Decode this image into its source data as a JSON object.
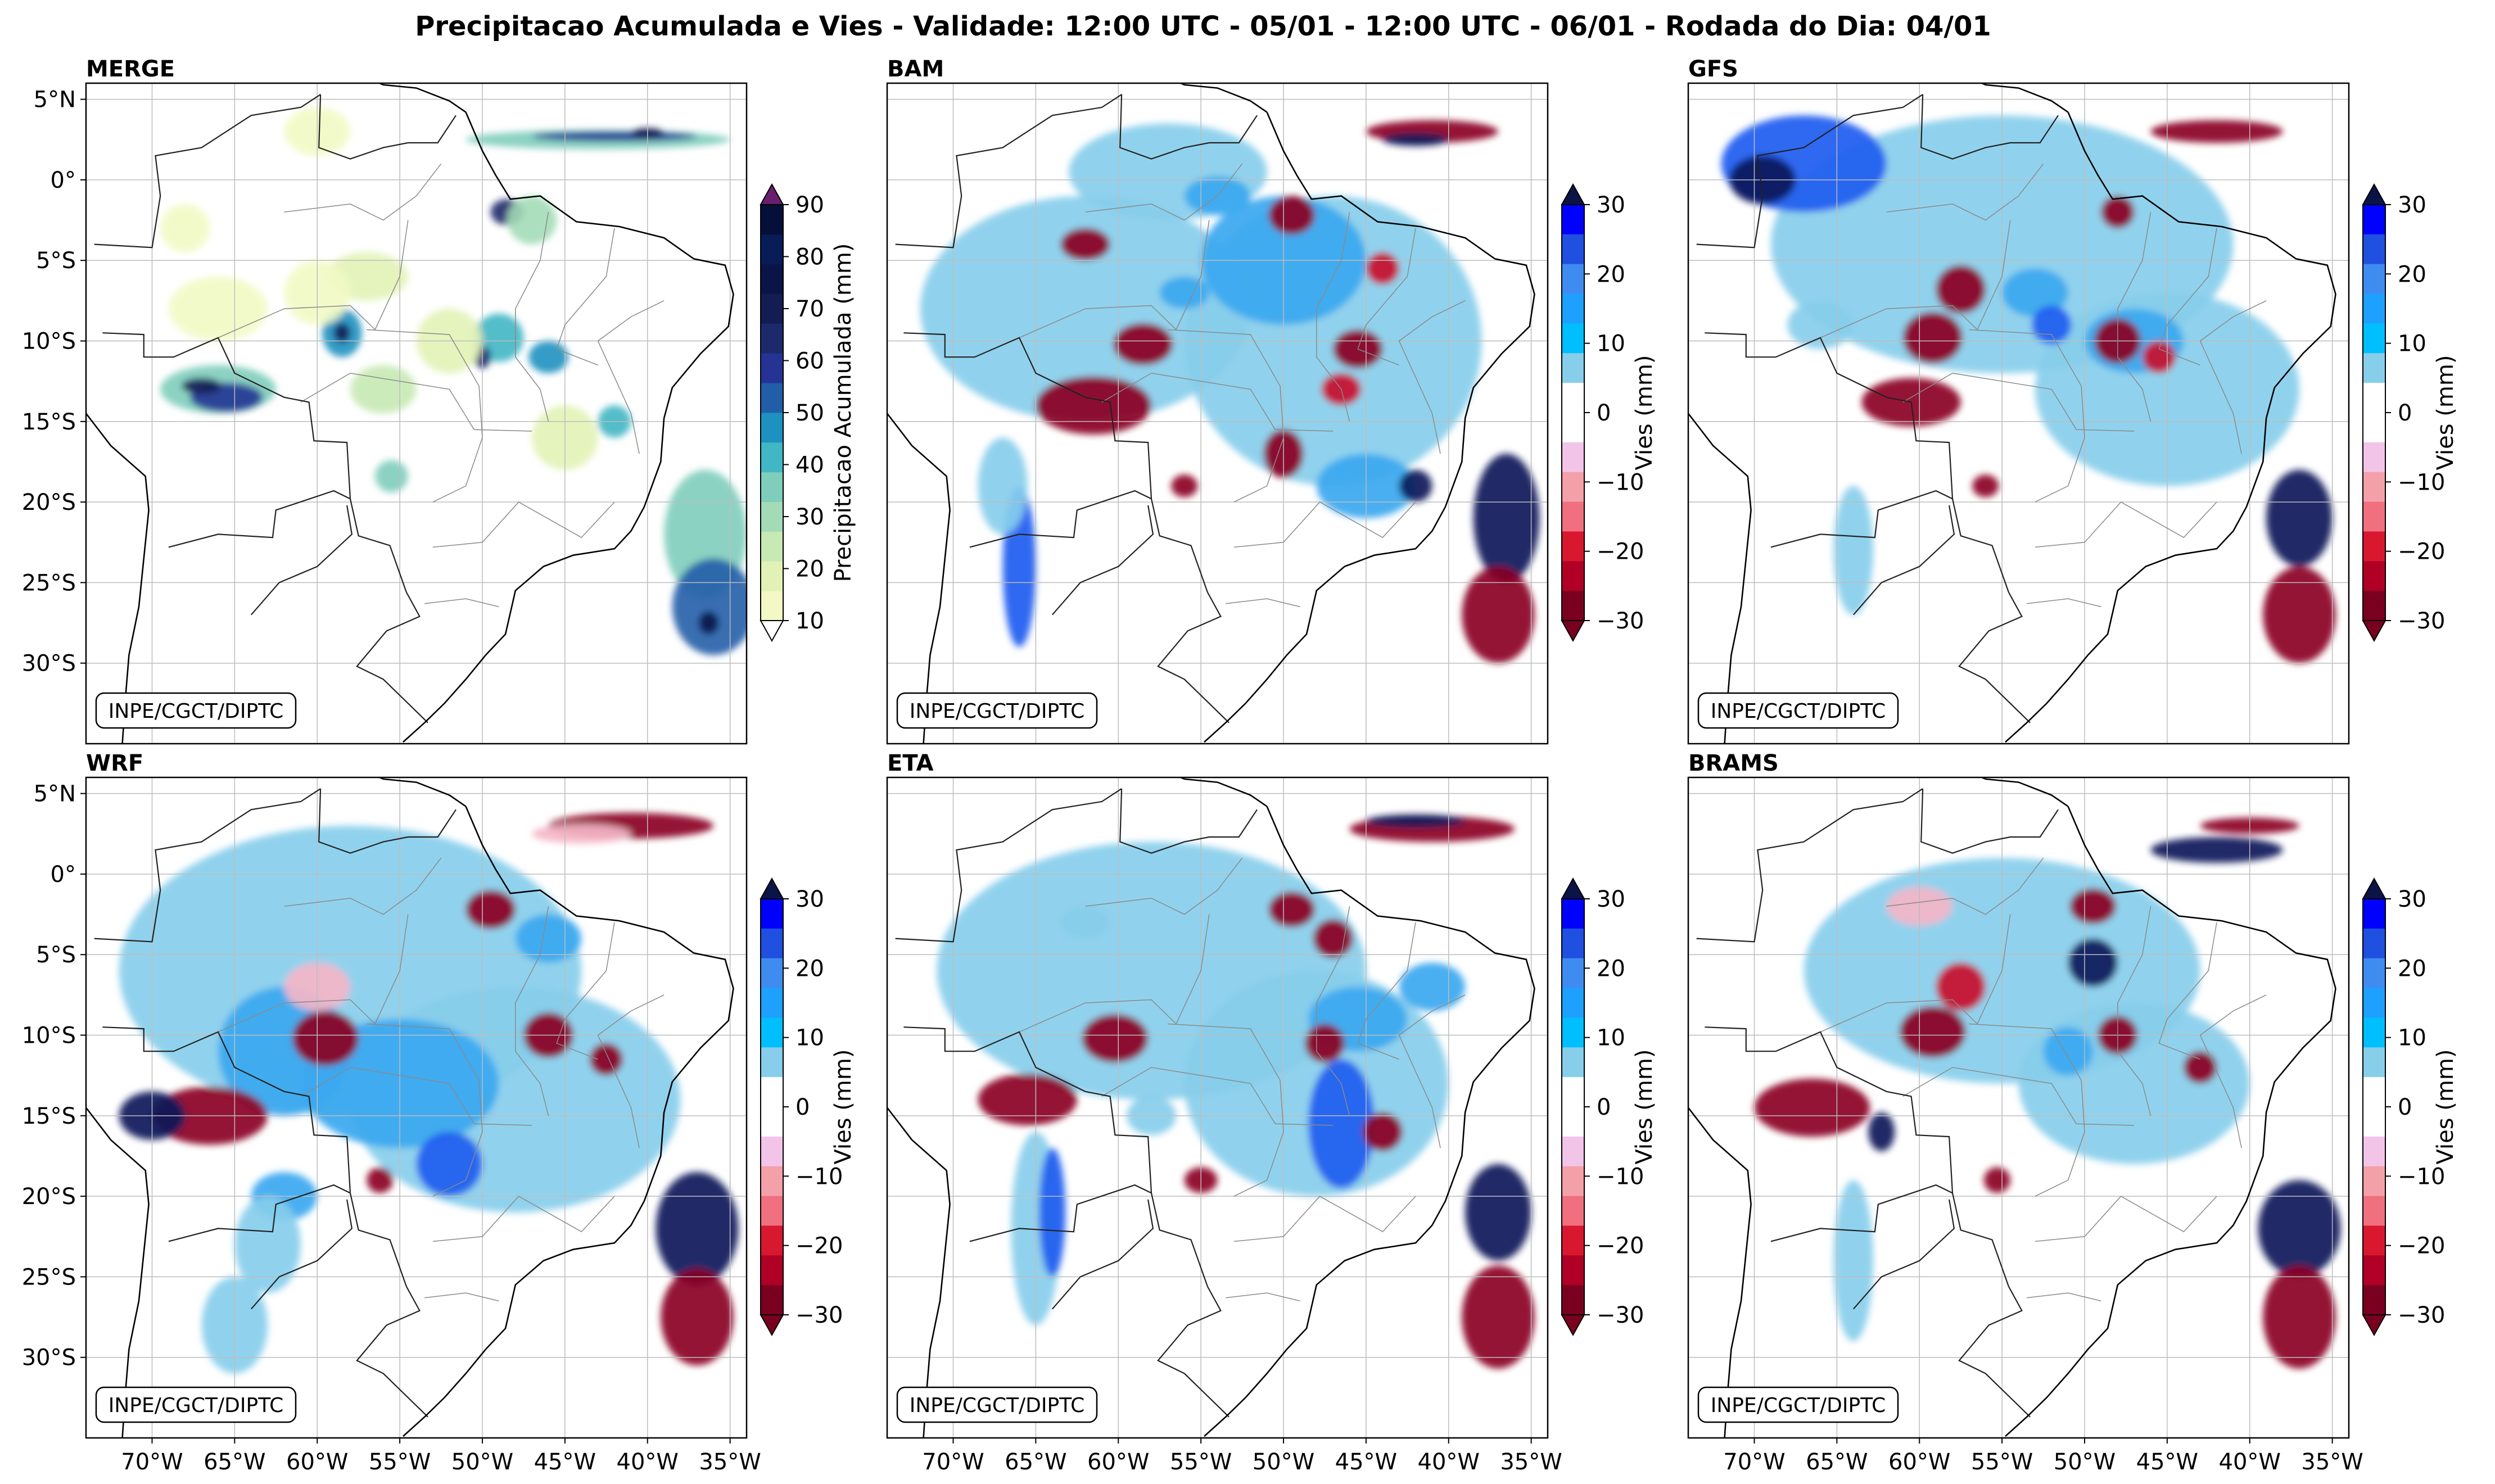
{
  "figure": {
    "title": "Precipitacao Acumulada e Vies - Validade: 12:00 UTC - 05/01 - 12:00 UTC - 06/01 - Rodada do Dia: 04/01",
    "credit": "INPE/CGCT/DIPTC"
  },
  "panels": [
    {
      "name": "MERGE",
      "kind": "precip"
    },
    {
      "name": "BAM",
      "kind": "bias"
    },
    {
      "name": "GFS",
      "kind": "bias"
    },
    {
      "name": "WRF",
      "kind": "bias"
    },
    {
      "name": "ETA",
      "kind": "bias"
    },
    {
      "name": "BRAMS",
      "kind": "bias"
    }
  ],
  "axes": {
    "lat_labels": [
      "5°N",
      "0°",
      "5°S",
      "10°S",
      "15°S",
      "20°S",
      "25°S",
      "30°S"
    ],
    "lat_values": [
      5,
      0,
      -5,
      -10,
      -15,
      -20,
      -25,
      -30
    ],
    "lon_labels": [
      "70°W",
      "65°W",
      "60°W",
      "55°W",
      "50°W",
      "45°W",
      "40°W",
      "35°W"
    ],
    "lon_values": [
      -70,
      -65,
      -60,
      -55,
      -50,
      -45,
      -40,
      -35
    ],
    "lat_range": [
      -35,
      6
    ],
    "lon_range": [
      -74,
      -34
    ]
  },
  "colorbars": {
    "precip": {
      "label": "Precipitacao Acumulada (mm)",
      "ticks": [
        "10",
        "20",
        "30",
        "40",
        "50",
        "60",
        "70",
        "80",
        "90"
      ],
      "colors": [
        "#f2f9c4",
        "#e2f2b6",
        "#c7e9b4",
        "#a3dbb7",
        "#7fcdbb",
        "#41b6c4",
        "#1d91c0",
        "#225ea8",
        "#253494",
        "#1c2a6c",
        "#141d53",
        "#0b1447",
        "#081d58",
        "#060f3a"
      ],
      "over_color": "#6a1e6e"
    },
    "bias": {
      "label": "Vies (mm)",
      "ticks": [
        "30",
        "20",
        "10",
        "0",
        "−10",
        "−20",
        "−30"
      ],
      "colors": [
        "#0000ff",
        "#2050e0",
        "#3f8cf0",
        "#1ea0ff",
        "#00bfff",
        "#87ceeb",
        "#ffffff",
        "#ffffff",
        "#f2c4e8",
        "#f4a0a8",
        "#f07080",
        "#d8182f",
        "#b00026",
        "#7a0020"
      ],
      "over_color": "#0b1447",
      "under_color": "#7a0020"
    }
  },
  "colors": {
    "dark_red": "#8b0022",
    "red": "#c8102e",
    "pink": "#f4b6c8",
    "light_blue": "#87ceeb",
    "sky": "#3aa8f0",
    "blue": "#1e5cf0",
    "navy": "#0b1a5a",
    "yellow_green": "#e8f5b0",
    "teal": "#4fb3c4",
    "deep_blue": "#2a4ea8"
  }
}
